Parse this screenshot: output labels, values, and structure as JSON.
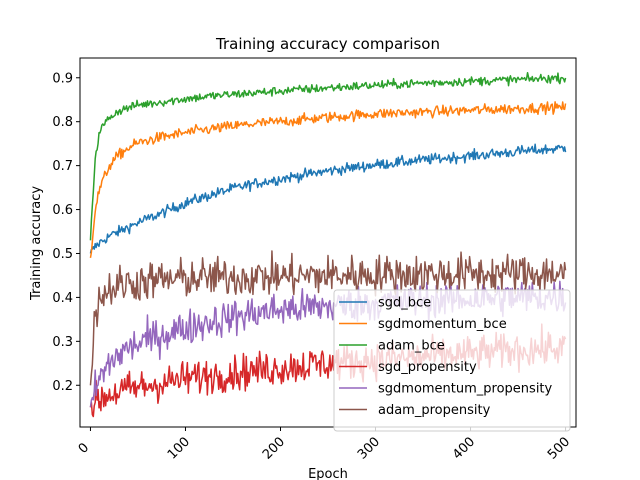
{
  "chart_data": {
    "type": "line",
    "title": "Training accuracy comparison",
    "xlabel": "Epoch",
    "ylabel": "Training accuracy",
    "xlim": [
      -11,
      511
    ],
    "ylim": [
      0.105,
      0.945
    ],
    "xticks": [
      0,
      100,
      200,
      300,
      400,
      500
    ],
    "yticks": [
      0.2,
      0.3,
      0.4,
      0.5,
      0.6,
      0.7,
      0.8,
      0.9
    ],
    "grid": false,
    "legend_position": "lower-right",
    "x": [
      0,
      5,
      10,
      20,
      30,
      40,
      50,
      75,
      100,
      125,
      150,
      175,
      200,
      250,
      300,
      350,
      400,
      450,
      500
    ],
    "series": [
      {
        "name": "sgd_bce",
        "color": "#1f77b4",
        "noise": 0.006,
        "values": [
          0.5,
          0.515,
          0.525,
          0.54,
          0.55,
          0.56,
          0.57,
          0.592,
          0.615,
          0.632,
          0.648,
          0.66,
          0.67,
          0.688,
          0.702,
          0.713,
          0.722,
          0.732,
          0.74
        ]
      },
      {
        "name": "sgdmomentum_bce",
        "color": "#ff7f0e",
        "noise": 0.006,
        "values": [
          0.49,
          0.6,
          0.65,
          0.7,
          0.725,
          0.74,
          0.752,
          0.765,
          0.775,
          0.783,
          0.79,
          0.796,
          0.8,
          0.81,
          0.818,
          0.822,
          0.826,
          0.83,
          0.833
        ]
      },
      {
        "name": "adam_bce",
        "color": "#2ca02c",
        "noise": 0.005,
        "values": [
          0.53,
          0.72,
          0.78,
          0.81,
          0.825,
          0.832,
          0.838,
          0.845,
          0.852,
          0.858,
          0.862,
          0.866,
          0.87,
          0.877,
          0.883,
          0.888,
          0.892,
          0.896,
          0.9
        ]
      },
      {
        "name": "sgd_propensity",
        "color": "#d62728",
        "noise": 0.02,
        "values": [
          0.15,
          0.16,
          0.17,
          0.18,
          0.185,
          0.19,
          0.195,
          0.205,
          0.215,
          0.222,
          0.228,
          0.234,
          0.24,
          0.25,
          0.258,
          0.265,
          0.272,
          0.28,
          0.285
        ]
      },
      {
        "name": "sgdmomentum_propensity",
        "color": "#9467bd",
        "noise": 0.02,
        "values": [
          0.15,
          0.19,
          0.215,
          0.25,
          0.27,
          0.285,
          0.295,
          0.315,
          0.33,
          0.345,
          0.355,
          0.365,
          0.372,
          0.38,
          0.388,
          0.393,
          0.397,
          0.4,
          0.402
        ]
      },
      {
        "name": "adam_propensity",
        "color": "#8c564b",
        "noise": 0.022,
        "values": [
          0.2,
          0.37,
          0.4,
          0.42,
          0.428,
          0.432,
          0.435,
          0.44,
          0.443,
          0.445,
          0.446,
          0.447,
          0.448,
          0.45,
          0.452,
          0.453,
          0.454,
          0.455,
          0.455
        ]
      }
    ]
  }
}
